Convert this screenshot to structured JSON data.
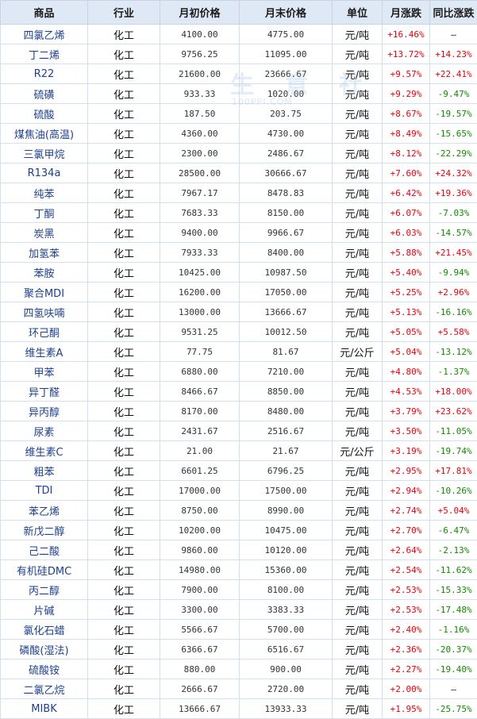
{
  "headers": [
    "商品",
    "行业",
    "月初价格",
    "月末价格",
    "单位",
    "月涨跌",
    "同比涨跌"
  ],
  "watermark": {
    "text": "生 意 社",
    "sub": "100PPI.COM"
  },
  "colors": {
    "header_bg": "#dfe9f5",
    "name": "#1d3f8c",
    "up": "#e8000b",
    "down": "#118a00",
    "flat": "#111111"
  },
  "rows": [
    [
      "四氯乙烯",
      "化工",
      "4100.00",
      "4775.00",
      "元/吨",
      "+16.46%",
      "—"
    ],
    [
      "丁二烯",
      "化工",
      "9756.25",
      "11095.00",
      "元/吨",
      "+13.72%",
      "+14.23%"
    ],
    [
      "R22",
      "化工",
      "21600.00",
      "23666.67",
      "元/吨",
      "+9.57%",
      "+22.41%"
    ],
    [
      "硫磺",
      "化工",
      "933.33",
      "1020.00",
      "元/吨",
      "+9.29%",
      "-9.47%"
    ],
    [
      "硫酸",
      "化工",
      "187.50",
      "203.75",
      "元/吨",
      "+8.67%",
      "-19.57%"
    ],
    [
      "煤焦油(高温)",
      "化工",
      "4360.00",
      "4730.00",
      "元/吨",
      "+8.49%",
      "-15.65%"
    ],
    [
      "三氯甲烷",
      "化工",
      "2300.00",
      "2486.67",
      "元/吨",
      "+8.12%",
      "-22.29%"
    ],
    [
      "R134a",
      "化工",
      "28500.00",
      "30666.67",
      "元/吨",
      "+7.60%",
      "+24.32%"
    ],
    [
      "纯苯",
      "化工",
      "7967.17",
      "8478.83",
      "元/吨",
      "+6.42%",
      "+19.36%"
    ],
    [
      "丁酮",
      "化工",
      "7683.33",
      "8150.00",
      "元/吨",
      "+6.07%",
      "-7.03%"
    ],
    [
      "炭黑",
      "化工",
      "9400.00",
      "9966.67",
      "元/吨",
      "+6.03%",
      "-14.57%"
    ],
    [
      "加氢苯",
      "化工",
      "7933.33",
      "8400.00",
      "元/吨",
      "+5.88%",
      "+21.45%"
    ],
    [
      "苯胺",
      "化工",
      "10425.00",
      "10987.50",
      "元/吨",
      "+5.40%",
      "-9.94%"
    ],
    [
      "聚合MDI",
      "化工",
      "16200.00",
      "17050.00",
      "元/吨",
      "+5.25%",
      "+2.96%"
    ],
    [
      "四氢呋喃",
      "化工",
      "13000.00",
      "13666.67",
      "元/吨",
      "+5.13%",
      "-16.16%"
    ],
    [
      "环己酮",
      "化工",
      "9531.25",
      "10012.50",
      "元/吨",
      "+5.05%",
      "+5.58%"
    ],
    [
      "维生素A",
      "化工",
      "77.75",
      "81.67",
      "元/公斤",
      "+5.04%",
      "-13.12%"
    ],
    [
      "甲苯",
      "化工",
      "6880.00",
      "7210.00",
      "元/吨",
      "+4.80%",
      "-1.37%"
    ],
    [
      "异丁醛",
      "化工",
      "8466.67",
      "8850.00",
      "元/吨",
      "+4.53%",
      "+18.00%"
    ],
    [
      "异丙醇",
      "化工",
      "8170.00",
      "8480.00",
      "元/吨",
      "+3.79%",
      "+23.62%"
    ],
    [
      "尿素",
      "化工",
      "2431.67",
      "2516.67",
      "元/吨",
      "+3.50%",
      "-11.05%"
    ],
    [
      "维生素C",
      "化工",
      "21.00",
      "21.67",
      "元/公斤",
      "+3.19%",
      "-19.74%"
    ],
    [
      "粗苯",
      "化工",
      "6601.25",
      "6796.25",
      "元/吨",
      "+2.95%",
      "+17.81%"
    ],
    [
      "TDI",
      "化工",
      "17000.00",
      "17500.00",
      "元/吨",
      "+2.94%",
      "-10.26%"
    ],
    [
      "苯乙烯",
      "化工",
      "8750.00",
      "8990.00",
      "元/吨",
      "+2.74%",
      "+5.04%"
    ],
    [
      "新戊二醇",
      "化工",
      "10200.00",
      "10475.00",
      "元/吨",
      "+2.70%",
      "-6.47%"
    ],
    [
      "己二酸",
      "化工",
      "9860.00",
      "10120.00",
      "元/吨",
      "+2.64%",
      "-2.13%"
    ],
    [
      "有机硅DMC",
      "化工",
      "14980.00",
      "15360.00",
      "元/吨",
      "+2.54%",
      "-11.62%"
    ],
    [
      "丙二醇",
      "化工",
      "7900.00",
      "8100.00",
      "元/吨",
      "+2.53%",
      "-15.33%"
    ],
    [
      "片碱",
      "化工",
      "3300.00",
      "3383.33",
      "元/吨",
      "+2.53%",
      "-17.48%"
    ],
    [
      "氯化石蜡",
      "化工",
      "5566.67",
      "5700.00",
      "元/吨",
      "+2.40%",
      "-1.16%"
    ],
    [
      "磷酸(湿法)",
      "化工",
      "6366.67",
      "6516.67",
      "元/吨",
      "+2.36%",
      "-20.37%"
    ],
    [
      "硫酸铵",
      "化工",
      "880.00",
      "900.00",
      "元/吨",
      "+2.27%",
      "-19.40%"
    ],
    [
      "二氯乙烷",
      "化工",
      "2666.67",
      "2720.00",
      "元/吨",
      "+2.00%",
      "—"
    ],
    [
      "MIBK",
      "化工",
      "13666.67",
      "13933.33",
      "元/吨",
      "+1.95%",
      "-25.75%"
    ]
  ]
}
